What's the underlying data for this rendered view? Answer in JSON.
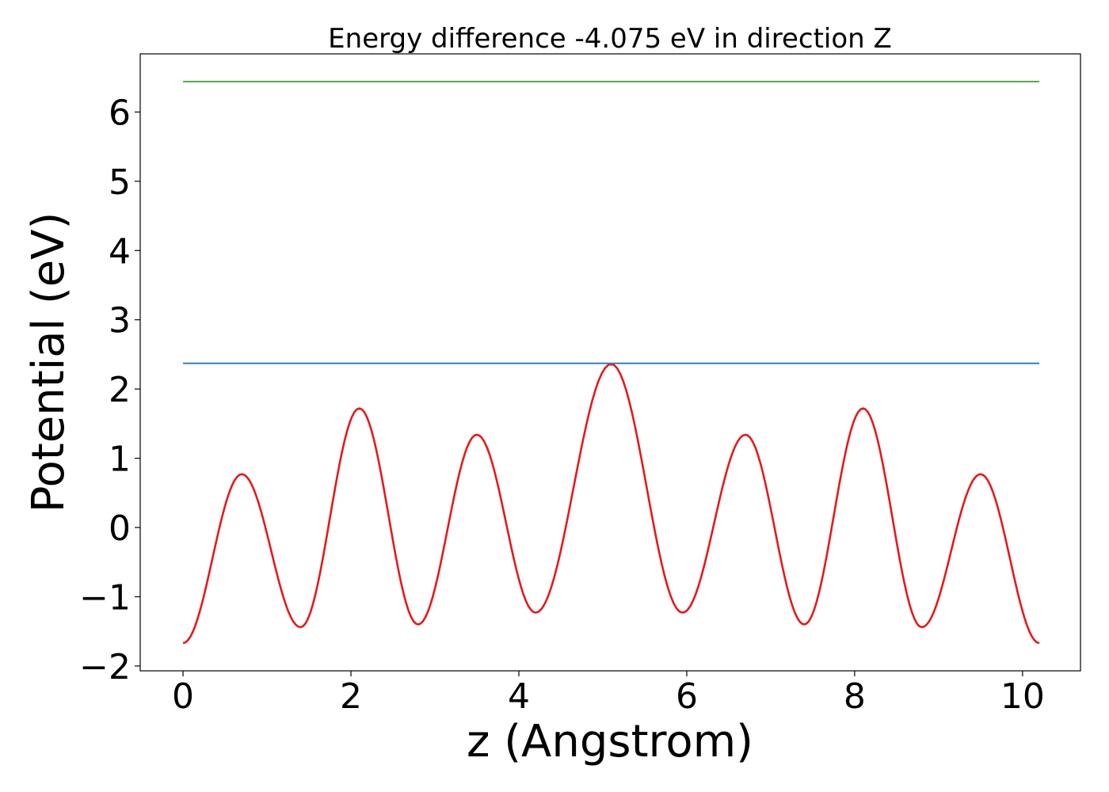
{
  "chart_data": {
    "type": "line",
    "title": "Energy difference -4.075 eV in direction Z",
    "xlabel": "z (Angstrom)",
    "ylabel": "Potential (eV)",
    "xlim": [
      -0.51,
      10.69
    ],
    "ylim": [
      -2.07,
      6.84
    ],
    "xticks": [
      0,
      2,
      4,
      6,
      8,
      10
    ],
    "xtick_labels": [
      "0",
      "2",
      "4",
      "6",
      "8",
      "10"
    ],
    "yticks": [
      -2,
      -1,
      0,
      1,
      2,
      3,
      4,
      5,
      6
    ],
    "ytick_labels": [
      "−2",
      "−1",
      "0",
      "1",
      "2",
      "3",
      "4",
      "5",
      "6"
    ],
    "grid": false,
    "series": [
      {
        "color": "#e41a1c",
        "style": "curve",
        "points": [
          [
            0.0,
            -1.67
          ],
          [
            0.7,
            0.77
          ],
          [
            1.4,
            -1.44
          ],
          [
            2.1,
            1.72
          ],
          [
            2.8,
            -1.4
          ],
          [
            3.5,
            1.34
          ],
          [
            4.2,
            -1.23
          ],
          [
            5.1,
            2.36
          ],
          [
            5.95,
            -1.23
          ],
          [
            6.7,
            1.34
          ],
          [
            7.4,
            -1.4
          ],
          [
            8.1,
            1.72
          ],
          [
            8.8,
            -1.44
          ],
          [
            9.5,
            0.77
          ],
          [
            10.2,
            -1.67
          ]
        ]
      },
      {
        "color": "#377eb8",
        "style": "hline",
        "y": 2.37,
        "x_range": [
          0.0,
          10.2
        ]
      },
      {
        "color": "#4daf4a",
        "style": "hline",
        "y": 6.44,
        "x_range": [
          0.0,
          10.2
        ]
      }
    ]
  }
}
